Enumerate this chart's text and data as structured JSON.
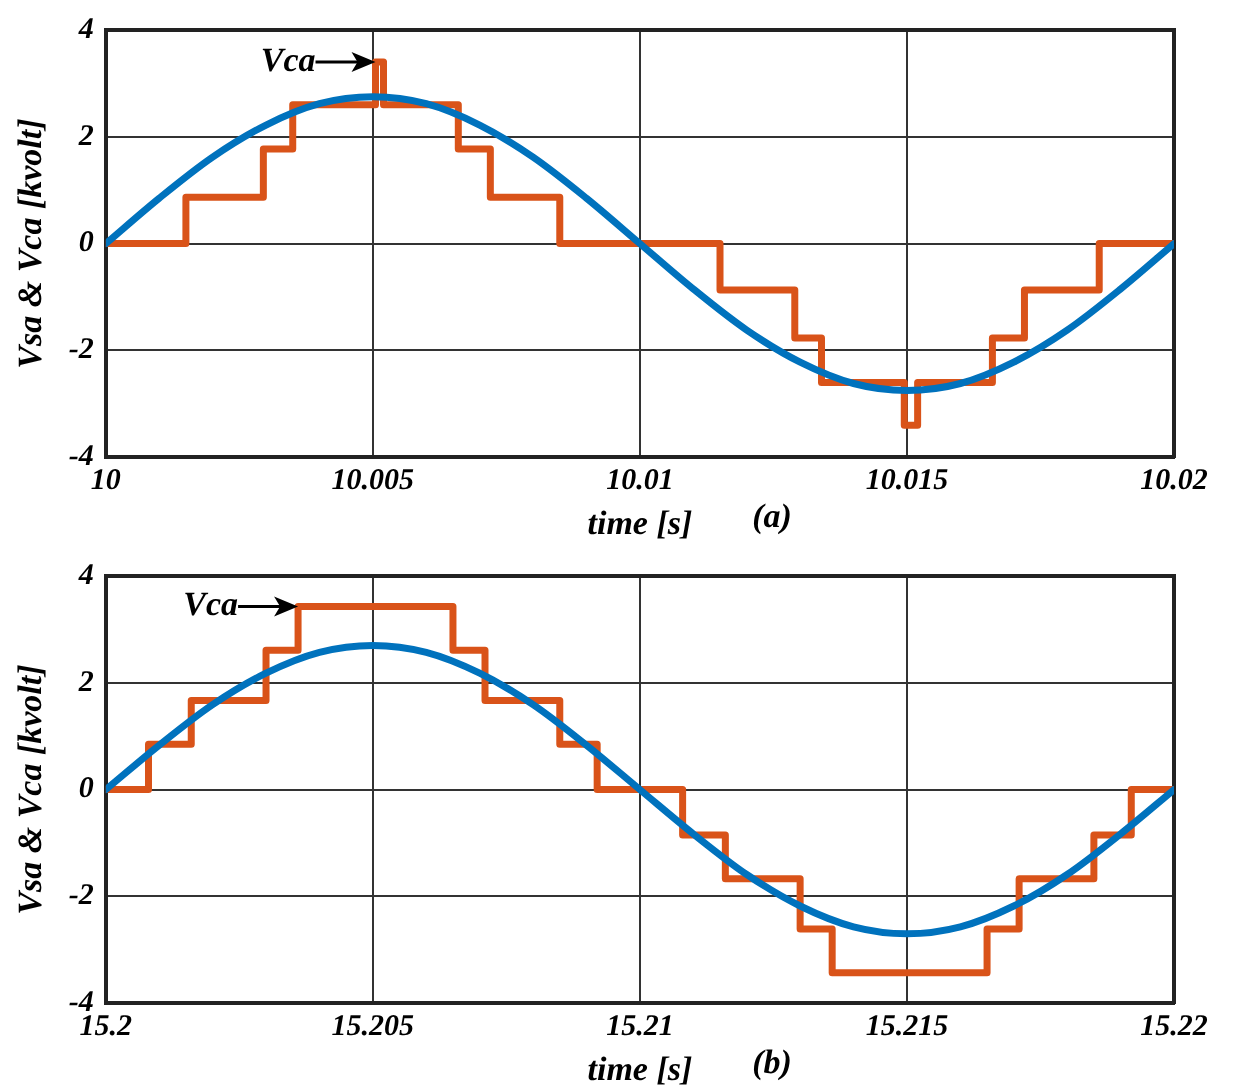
{
  "chart_data": [
    {
      "type": "line",
      "xlabel": "time [s]",
      "ylabel": "Vsa & Vca [kvolt]",
      "xlim": [
        10,
        10.02
      ],
      "xticks": [
        10,
        10.005,
        10.01,
        10.015,
        10.02
      ],
      "ylim": [
        -4,
        4
      ],
      "yticks": [
        -4,
        -2,
        0,
        2,
        4
      ],
      "grid": true,
      "legend": false,
      "series": [
        {
          "type": "line",
          "color": "#0072bd",
          "x": [
            10,
            10.001,
            10.002,
            10.003,
            10.004,
            10.005,
            10.006,
            10.007,
            10.008,
            10.009,
            10.01,
            10.011,
            10.012,
            10.013,
            10.014,
            10.015,
            10.016,
            10.017,
            10.018,
            10.019,
            10.02
          ],
          "values": [
            0,
            0.85,
            1.62,
            2.22,
            2.62,
            2.75,
            2.62,
            2.22,
            1.62,
            0.85,
            0,
            -0.85,
            -1.62,
            -2.22,
            -2.62,
            -2.75,
            -2.62,
            -2.22,
            -1.62,
            -0.85,
            0
          ]
        },
        {
          "type": "step",
          "color": "#d95319",
          "x": [
            10,
            10.0015,
            10.00295,
            10.0035,
            10.00505,
            10.0052,
            10.0066,
            10.0072,
            10.0085,
            10.0115,
            10.0129,
            10.0134,
            10.01495,
            10.0152,
            10.0166,
            10.0172,
            10.0186,
            10.02
          ],
          "values": [
            0,
            0.87,
            1.77,
            2.6,
            3.4,
            2.6,
            1.77,
            0.87,
            0,
            -0.87,
            -1.77,
            -2.6,
            -3.4,
            -2.6,
            -1.77,
            -0.87,
            0,
            0
          ]
        }
      ],
      "annotations": [
        {
          "text": "Vca",
          "x": 10.00505,
          "y": 3.4
        },
        "(a)"
      ]
    },
    {
      "type": "line",
      "xlabel": "time [s]",
      "ylabel": "Vsa & Vca [kvolt]",
      "xlim": [
        15.2,
        15.22
      ],
      "xticks": [
        15.2,
        15.205,
        15.21,
        15.215,
        15.22
      ],
      "ylim": [
        -4,
        4
      ],
      "yticks": [
        -4,
        -2,
        0,
        2,
        4
      ],
      "grid": true,
      "legend": false,
      "series": [
        {
          "type": "line",
          "color": "#0072bd",
          "x": [
            15.2,
            15.201,
            15.202,
            15.203,
            15.204,
            15.205,
            15.206,
            15.207,
            15.208,
            15.209,
            15.21,
            15.211,
            15.212,
            15.213,
            15.214,
            15.215,
            15.216,
            15.217,
            15.218,
            15.219,
            15.22
          ],
          "values": [
            0,
            0.83,
            1.59,
            2.18,
            2.57,
            2.7,
            2.57,
            2.18,
            1.59,
            0.83,
            0,
            -0.83,
            -1.59,
            -2.18,
            -2.57,
            -2.7,
            -2.57,
            -2.18,
            -1.59,
            -0.83,
            0
          ]
        },
        {
          "type": "step",
          "color": "#d95319",
          "x": [
            15.2,
            15.2008,
            15.2016,
            15.203,
            15.2036,
            15.2065,
            15.2071,
            15.2085,
            15.2092,
            15.2108,
            15.2116,
            15.213,
            15.2136,
            15.2165,
            15.2171,
            15.2185,
            15.2192,
            15.22
          ],
          "values": [
            0,
            0.85,
            1.67,
            2.61,
            3.43,
            2.61,
            1.67,
            0.85,
            0,
            -0.85,
            -1.67,
            -2.61,
            -3.43,
            -2.61,
            -1.67,
            -0.85,
            0,
            0
          ]
        }
      ],
      "annotations": [
        {
          "text": "Vca",
          "x": 15.2036,
          "y": 3.43
        },
        "(b)"
      ]
    }
  ]
}
